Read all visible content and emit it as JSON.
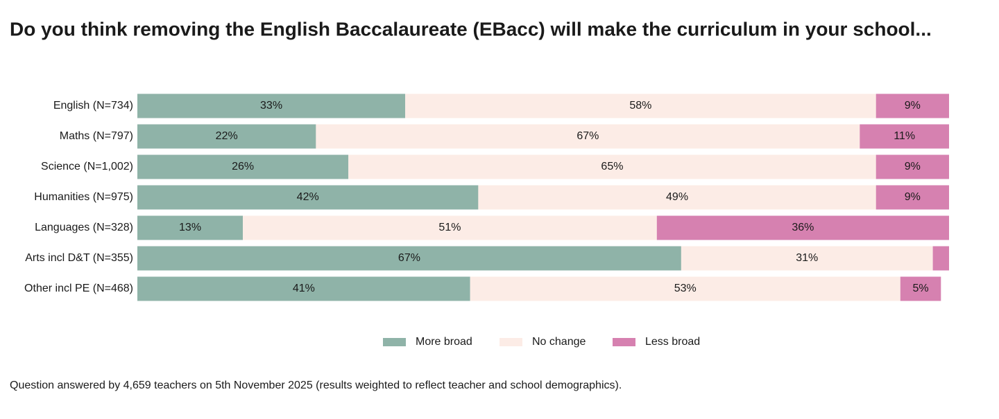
{
  "chart_data": {
    "type": "stacked-barh",
    "title": "Do you think removing the English Baccalaureate (EBacc) will make the curriculum in your school...",
    "note": "Question answered by 4,659 teachers on 5th November 2025 (results weighted to reflect teacher and school demographics).",
    "categories": [
      "English (N=734)",
      "Maths (N=797)",
      "Science (N=1,002)",
      "Humanities (N=975)",
      "Languages (N=328)",
      "Arts incl D&T (N=355)",
      "Other incl PE (N=468)"
    ],
    "xlim": [
      0,
      100
    ],
    "legend": "bottom",
    "series": [
      {
        "name": "More broad",
        "color": "#8fb3a8",
        "values": [
          33,
          22,
          26,
          42,
          13,
          67,
          41
        ],
        "value_labels": [
          "33%",
          "22%",
          "26%",
          "42%",
          "13%",
          "67%",
          "41%"
        ]
      },
      {
        "name": "No change",
        "color": "#fcece6",
        "values": [
          58,
          67,
          65,
          49,
          51,
          31,
          53
        ],
        "value_labels": [
          "58%",
          "67%",
          "65%",
          "49%",
          "51%",
          "31%",
          "53%"
        ]
      },
      {
        "name": "Less broad",
        "color": "#d681b0",
        "values": [
          9,
          11,
          9,
          9,
          36,
          2,
          5
        ],
        "value_labels": [
          "9%",
          "11%",
          "9%",
          "9%",
          "36%",
          null,
          "5%"
        ]
      }
    ]
  }
}
